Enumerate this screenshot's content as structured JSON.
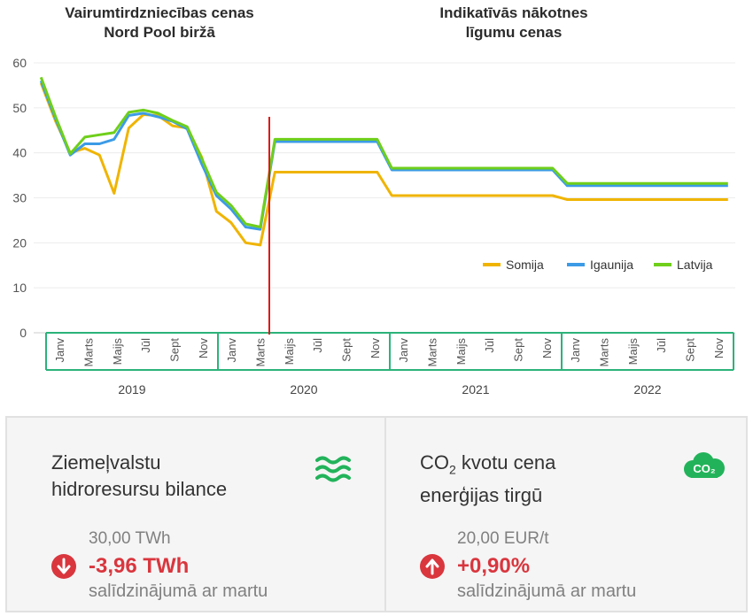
{
  "chart_data": {
    "type": "line",
    "titles": {
      "left": [
        "Vairumtirdzniecības cenas",
        "Nord Pool biržā"
      ],
      "right": [
        "Indikatīvās nākotnes",
        "līgumu cenas"
      ]
    },
    "ylim": [
      0,
      60
    ],
    "yticks": [
      "0",
      "10",
      "20",
      "30",
      "40",
      "50",
      "60"
    ],
    "month_labels": [
      "Janv",
      "Marts",
      "Maijs",
      "Jūl",
      "Sept",
      "Nov",
      "Janv",
      "Marts",
      "Maijs",
      "Jūl",
      "Sept",
      "Nov",
      "Janv",
      "Marts",
      "Maijs",
      "Jūl",
      "Sept",
      "Nov",
      "Janv",
      "Marts",
      "Maijs",
      "Jūl",
      "Sept",
      "Nov"
    ],
    "years": [
      "2019",
      "2020",
      "2021",
      "2022"
    ],
    "divider_after_month": 16,
    "series": [
      {
        "name": "Somija",
        "color": "#f0b400",
        "values": [
          55.5,
          47,
          40,
          41,
          39.5,
          31,
          45.5,
          48.5,
          48.3,
          46,
          45.5,
          39,
          27,
          24.5,
          20,
          19.5,
          35.7,
          35.7,
          35.7,
          35.7,
          35.7,
          35.7,
          35.7,
          35.7,
          30.5,
          30.5,
          30.5,
          30.5,
          30.5,
          30.5,
          30.5,
          30.5,
          30.5,
          30.5,
          30.5,
          30.5,
          29.6,
          29.6,
          29.6,
          29.6,
          29.6,
          29.6,
          29.6,
          29.6,
          29.6,
          29.6,
          29.6,
          29.6
        ]
      },
      {
        "name": "Igaunija",
        "color": "#3c9be6",
        "values": [
          56,
          47.5,
          39.5,
          42,
          42,
          43,
          48.3,
          48.8,
          48,
          47,
          45.3,
          37.5,
          30.5,
          27.5,
          23.5,
          23,
          42.5,
          42.5,
          42.5,
          42.5,
          42.5,
          42.5,
          42.5,
          42.5,
          36.2,
          36.2,
          36.2,
          36.2,
          36.2,
          36.2,
          36.2,
          36.2,
          36.2,
          36.2,
          36.2,
          36.2,
          32.7,
          32.7,
          32.7,
          32.7,
          32.7,
          32.7,
          32.7,
          32.7,
          32.7,
          32.7,
          32.7,
          32.7
        ]
      },
      {
        "name": "Latvija",
        "color": "#6fcf1b",
        "values": [
          56.8,
          48,
          39.8,
          43.5,
          44,
          44.5,
          49,
          49.5,
          48.8,
          47.2,
          45.8,
          38.7,
          31.2,
          28.3,
          24.2,
          23.5,
          43,
          43,
          43,
          43,
          43,
          43,
          43,
          43,
          36.6,
          36.6,
          36.6,
          36.6,
          36.6,
          36.6,
          36.6,
          36.6,
          36.6,
          36.6,
          36.6,
          36.6,
          33.2,
          33.2,
          33.2,
          33.2,
          33.2,
          33.2,
          33.2,
          33.2,
          33.2,
          33.2,
          33.2,
          33.2
        ]
      }
    ],
    "legend_position": "lower-right"
  },
  "panels": {
    "hydro": {
      "title_line1": "Ziemeļvalstu",
      "title_line2": "hidroresursu bilance",
      "value": "30,00 TWh",
      "change": "-3,96 TWh",
      "direction": "down",
      "compare": "salīdzinājumā ar martu",
      "icon": "waves-icon",
      "icon_color": "#22b35a"
    },
    "co2": {
      "title_pre": "CO",
      "title_sub": "2",
      "title_post": " kvotu cena",
      "title_line2": "enerģijas tirgū",
      "value": "20,00 EUR/t",
      "change": "+0,90%",
      "direction": "up",
      "compare": "salīdzinājumā ar martu",
      "icon": "co2-cloud-icon",
      "icon_text": "CO₂",
      "icon_color": "#22b35a"
    }
  },
  "colors": {
    "axis": "#2bb37a",
    "divider": "#e01818",
    "down": "#d9363e",
    "up": "#d9363e"
  }
}
